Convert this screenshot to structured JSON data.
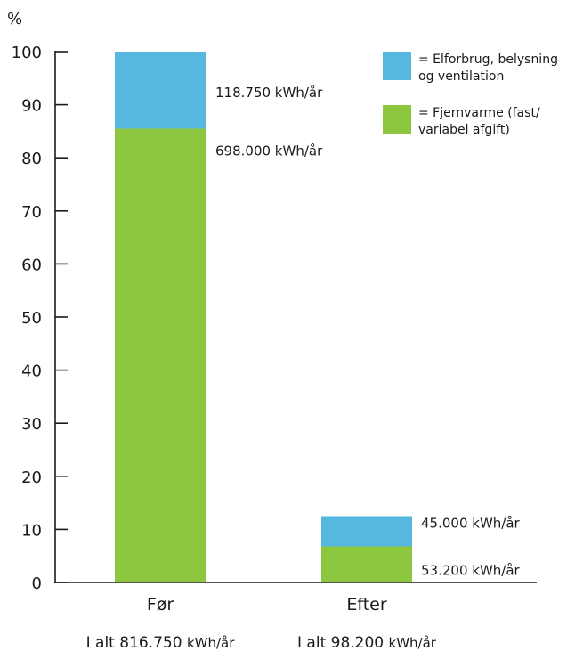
{
  "chart_data": {
    "type": "bar",
    "stacked": true,
    "ylabel": "%",
    "ylim": [
      0,
      100
    ],
    "yticks": [
      "0",
      "10",
      "20",
      "30",
      "40",
      "50",
      "60",
      "70",
      "80",
      "90",
      "100"
    ],
    "categories": [
      "Før",
      "Efter"
    ],
    "series": [
      {
        "name": "= Fjernvarme (fast/ variabel afgift)",
        "legend_lines": [
          "= Fjernvarme (fast/",
          "variabel afgift)"
        ],
        "color": "#8dc63f",
        "values": [
          85.5,
          6.8
        ],
        "labels": [
          "698.000 kWh/år",
          "53.200 kWh/år"
        ]
      },
      {
        "name": "= Elforbrug, belysning og ventilation",
        "legend_lines": [
          "= Elforbrug, belysning",
          "og ventilation"
        ],
        "color": "#56b8e0",
        "values": [
          14.5,
          5.7
        ],
        "labels": [
          "118.750 kWh/år",
          "45.000 kWh/år"
        ]
      }
    ],
    "totals": [
      {
        "prefix": "I alt 816.750",
        "unit": "kWh/år"
      },
      {
        "prefix": "I alt 98.200",
        "unit": "kWh/år"
      }
    ],
    "grid": false,
    "legend_position": "top-right"
  }
}
